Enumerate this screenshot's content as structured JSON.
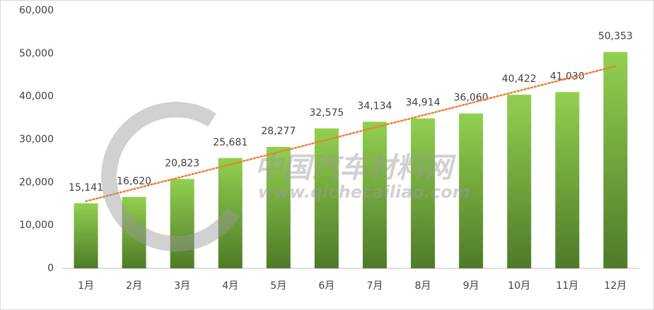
{
  "chart_data": {
    "type": "bar",
    "categories": [
      "1月",
      "2月",
      "3月",
      "4月",
      "5月",
      "6月",
      "7月",
      "8月",
      "9月",
      "10月",
      "11月",
      "12月"
    ],
    "values": [
      15141,
      16620,
      20823,
      25681,
      28277,
      32575,
      34134,
      34914,
      36060,
      40422,
      41030,
      50353
    ],
    "value_labels": [
      "15,141",
      "16,620",
      "20,823",
      "25,681",
      "28,277",
      "32,575",
      "34,134",
      "34,914",
      "36,060",
      "40,422",
      "41,030",
      "50,353"
    ],
    "color": [
      "#92d050",
      "#4f7a28"
    ],
    "ylim": [
      0,
      60000
    ],
    "yticks": [
      0,
      {
        "value": 10000,
        "label": "10,000"
      },
      {
        "value": 20000,
        "label": "20,000"
      },
      {
        "value": 30000,
        "label": "30,000"
      },
      {
        "value": 40000,
        "label": "40,000"
      },
      {
        "value": 50000,
        "label": "50,000"
      },
      {
        "value": 60000,
        "label": "60,000"
      }
    ],
    "grid": false,
    "trendline": {
      "type": "linear",
      "color": "#ed7d31"
    },
    "watermark": [
      "中国汽车材料网",
      "www.qichecailiao.com"
    ]
  }
}
